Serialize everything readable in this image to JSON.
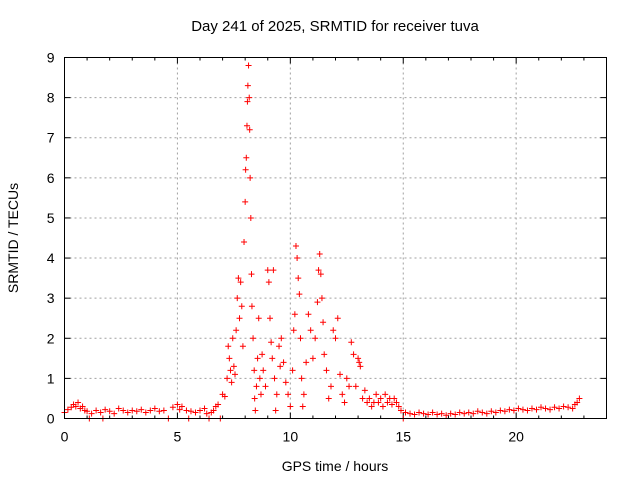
{
  "chart_data": {
    "type": "scatter",
    "title": "Day 241 of 2025, SRMTID for receiver tuva",
    "xlabel": "GPS time / hours",
    "ylabel": "SRMTID / TECUs",
    "xlim": [
      0,
      24
    ],
    "ylim": [
      0,
      9
    ],
    "xticks": [
      0,
      5,
      10,
      15,
      20
    ],
    "yticks": [
      0,
      1,
      2,
      3,
      4,
      5,
      6,
      7,
      8,
      9
    ],
    "grid": true,
    "marker": "+",
    "color": "#ff0000",
    "series": [
      {
        "name": "SRMTID",
        "points": [
          [
            0.0,
            0.15
          ],
          [
            0.15,
            0.22
          ],
          [
            0.3,
            0.28
          ],
          [
            0.4,
            0.35
          ],
          [
            0.5,
            0.3
          ],
          [
            0.6,
            0.4
          ],
          [
            0.7,
            0.25
          ],
          [
            0.8,
            0.3
          ],
          [
            0.9,
            0.2
          ],
          [
            1.0,
            0.18
          ],
          [
            1.1,
            0.0
          ],
          [
            1.2,
            0.12
          ],
          [
            1.4,
            0.2
          ],
          [
            1.6,
            0.15
          ],
          [
            1.7,
            0.0
          ],
          [
            1.8,
            0.22
          ],
          [
            2.0,
            0.18
          ],
          [
            2.2,
            0.12
          ],
          [
            2.4,
            0.25
          ],
          [
            2.6,
            0.2
          ],
          [
            2.8,
            0.15
          ],
          [
            3.0,
            0.2
          ],
          [
            3.2,
            0.18
          ],
          [
            3.4,
            0.22
          ],
          [
            3.6,
            0.15
          ],
          [
            3.8,
            0.2
          ],
          [
            4.0,
            0.25
          ],
          [
            4.2,
            0.18
          ],
          [
            4.4,
            0.2
          ],
          [
            4.6,
            0.0
          ],
          [
            4.8,
            0.28
          ],
          [
            5.0,
            0.35
          ],
          [
            5.1,
            0.22
          ],
          [
            5.2,
            0.3
          ],
          [
            5.4,
            0.2
          ],
          [
            5.5,
            0.0
          ],
          [
            5.6,
            0.18
          ],
          [
            5.8,
            0.15
          ],
          [
            6.0,
            0.2
          ],
          [
            6.2,
            0.25
          ],
          [
            6.3,
            0.12
          ],
          [
            6.4,
            0.0
          ],
          [
            6.5,
            0.15
          ],
          [
            6.6,
            0.2
          ],
          [
            6.7,
            0.3
          ],
          [
            6.8,
            0.35
          ],
          [
            6.9,
            0.0
          ],
          [
            7.0,
            0.6
          ],
          [
            7.1,
            0.55
          ],
          [
            7.2,
            1.0
          ],
          [
            7.25,
            1.8
          ],
          [
            7.3,
            1.5
          ],
          [
            7.35,
            1.2
          ],
          [
            7.4,
            0.9
          ],
          [
            7.45,
            2.0
          ],
          [
            7.5,
            1.3
          ],
          [
            7.55,
            1.1
          ],
          [
            7.6,
            2.2
          ],
          [
            7.65,
            3.0
          ],
          [
            7.7,
            3.5
          ],
          [
            7.75,
            2.5
          ],
          [
            7.8,
            3.4
          ],
          [
            7.85,
            2.8
          ],
          [
            7.9,
            1.8
          ],
          [
            7.95,
            4.4
          ],
          [
            8.0,
            5.4
          ],
          [
            8.02,
            6.2
          ],
          [
            8.05,
            6.5
          ],
          [
            8.08,
            7.3
          ],
          [
            8.1,
            7.9
          ],
          [
            8.12,
            8.3
          ],
          [
            8.15,
            8.8
          ],
          [
            8.18,
            8.0
          ],
          [
            8.2,
            7.2
          ],
          [
            8.22,
            6.0
          ],
          [
            8.25,
            5.0
          ],
          [
            8.28,
            3.6
          ],
          [
            8.3,
            2.8
          ],
          [
            8.35,
            2.0
          ],
          [
            8.4,
            1.2
          ],
          [
            8.42,
            0.5
          ],
          [
            8.45,
            0.2
          ],
          [
            8.5,
            0.8
          ],
          [
            8.55,
            1.5
          ],
          [
            8.6,
            2.5
          ],
          [
            8.65,
            1.0
          ],
          [
            8.7,
            0.6
          ],
          [
            8.75,
            1.6
          ],
          [
            8.8,
            1.2
          ],
          [
            8.9,
            0.8
          ],
          [
            9.0,
            3.7
          ],
          [
            9.05,
            3.4
          ],
          [
            9.1,
            2.5
          ],
          [
            9.15,
            1.9
          ],
          [
            9.2,
            1.5
          ],
          [
            9.25,
            3.7
          ],
          [
            9.3,
            1.0
          ],
          [
            9.35,
            0.2
          ],
          [
            9.4,
            0.6
          ],
          [
            9.5,
            1.8
          ],
          [
            9.55,
            1.3
          ],
          [
            9.6,
            2.0
          ],
          [
            9.7,
            1.4
          ],
          [
            9.8,
            0.9
          ],
          [
            9.9,
            0.6
          ],
          [
            10.0,
            0.3
          ],
          [
            10.1,
            1.2
          ],
          [
            10.15,
            2.2
          ],
          [
            10.2,
            2.6
          ],
          [
            10.25,
            4.3
          ],
          [
            10.3,
            4.0
          ],
          [
            10.35,
            3.5
          ],
          [
            10.4,
            3.1
          ],
          [
            10.45,
            2.0
          ],
          [
            10.5,
            1.0
          ],
          [
            10.55,
            0.3
          ],
          [
            10.6,
            0.6
          ],
          [
            10.7,
            1.4
          ],
          [
            10.8,
            2.6
          ],
          [
            10.9,
            2.2
          ],
          [
            11.0,
            1.5
          ],
          [
            11.1,
            2.0
          ],
          [
            11.2,
            2.9
          ],
          [
            11.25,
            3.7
          ],
          [
            11.3,
            4.1
          ],
          [
            11.35,
            3.6
          ],
          [
            11.4,
            3.0
          ],
          [
            11.45,
            2.4
          ],
          [
            11.5,
            1.6
          ],
          [
            11.6,
            1.2
          ],
          [
            11.7,
            0.5
          ],
          [
            11.8,
            0.8
          ],
          [
            11.9,
            2.2
          ],
          [
            12.0,
            2.0
          ],
          [
            12.1,
            2.5
          ],
          [
            12.2,
            1.1
          ],
          [
            12.3,
            0.6
          ],
          [
            12.4,
            0.4
          ],
          [
            12.5,
            1.0
          ],
          [
            12.6,
            0.8
          ],
          [
            12.7,
            1.9
          ],
          [
            12.8,
            1.6
          ],
          [
            12.9,
            0.8
          ],
          [
            13.0,
            1.5
          ],
          [
            13.05,
            1.4
          ],
          [
            13.1,
            1.3
          ],
          [
            13.2,
            0.5
          ],
          [
            13.3,
            0.7
          ],
          [
            13.4,
            0.4
          ],
          [
            13.5,
            0.5
          ],
          [
            13.6,
            0.3
          ],
          [
            13.7,
            0.4
          ],
          [
            13.8,
            0.6
          ],
          [
            13.9,
            0.4
          ],
          [
            14.0,
            0.5
          ],
          [
            14.1,
            0.3
          ],
          [
            14.2,
            0.6
          ],
          [
            14.3,
            0.4
          ],
          [
            14.4,
            0.5
          ],
          [
            14.5,
            0.35
          ],
          [
            14.6,
            0.5
          ],
          [
            14.7,
            0.4
          ],
          [
            14.8,
            0.3
          ],
          [
            14.9,
            0.2
          ],
          [
            15.0,
            0.0
          ],
          [
            15.1,
            0.15
          ],
          [
            15.3,
            0.12
          ],
          [
            15.5,
            0.1
          ],
          [
            15.7,
            0.15
          ],
          [
            15.9,
            0.12
          ],
          [
            16.1,
            0.1
          ],
          [
            16.3,
            0.15
          ],
          [
            16.5,
            0.1
          ],
          [
            16.7,
            0.12
          ],
          [
            16.9,
            0.08
          ],
          [
            17.1,
            0.12
          ],
          [
            17.3,
            0.1
          ],
          [
            17.5,
            0.15
          ],
          [
            17.7,
            0.12
          ],
          [
            17.9,
            0.15
          ],
          [
            18.1,
            0.12
          ],
          [
            18.3,
            0.18
          ],
          [
            18.5,
            0.15
          ],
          [
            18.7,
            0.12
          ],
          [
            18.9,
            0.18
          ],
          [
            19.1,
            0.15
          ],
          [
            19.3,
            0.2
          ],
          [
            19.5,
            0.18
          ],
          [
            19.7,
            0.22
          ],
          [
            19.9,
            0.2
          ],
          [
            20.1,
            0.25
          ],
          [
            20.3,
            0.22
          ],
          [
            20.5,
            0.2
          ],
          [
            20.7,
            0.25
          ],
          [
            20.9,
            0.22
          ],
          [
            21.1,
            0.28
          ],
          [
            21.3,
            0.25
          ],
          [
            21.5,
            0.22
          ],
          [
            21.7,
            0.28
          ],
          [
            21.9,
            0.25
          ],
          [
            22.1,
            0.3
          ],
          [
            22.3,
            0.28
          ],
          [
            22.5,
            0.25
          ],
          [
            22.6,
            0.35
          ],
          [
            22.7,
            0.4
          ],
          [
            22.8,
            0.5
          ]
        ]
      }
    ]
  }
}
